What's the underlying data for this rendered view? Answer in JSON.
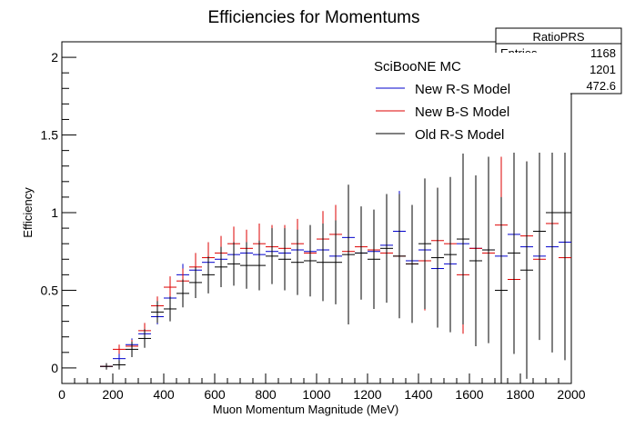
{
  "chart_data": {
    "type": "scatter",
    "title": "Efficiencies for Momentums",
    "xlabel": "Muon Momentum Magnitude (MeV)",
    "ylabel": "Efficiency",
    "xlim": [
      0,
      2000
    ],
    "ylim": [
      -0.1,
      2.1
    ],
    "xticks": [
      0,
      200,
      400,
      600,
      800,
      1000,
      1200,
      1400,
      1600,
      1800,
      2000
    ],
    "yticks": [
      0,
      0.5,
      1,
      1.5,
      2
    ],
    "ytick_labels": [
      "0",
      "0.5",
      "1",
      "1.5",
      "2"
    ],
    "grid": false,
    "bin_width": 50,
    "legend": {
      "placement": "top-right",
      "header": "SciBooNE MC",
      "entries": [
        {
          "label": "New R-S Model",
          "color": "#0000cc"
        },
        {
          "label": "New B-S Model",
          "color": "#dd0000"
        },
        {
          "label": "Old R-S Model",
          "color": "#000000"
        }
      ]
    },
    "stats_box": {
      "title": "RatioPRS",
      "rows": [
        {
          "label": "Entries",
          "value": "1168"
        },
        {
          "label": "",
          "value": "1201"
        },
        {
          "label": "",
          "value": "472.6"
        }
      ]
    },
    "series": [
      {
        "name": "New R-S Model",
        "color": "#0000cc",
        "x": [
          175,
          225,
          275,
          325,
          375,
          425,
          475,
          525,
          575,
          625,
          675,
          725,
          775,
          825,
          875,
          925,
          975,
          1025,
          1075,
          1125,
          1175,
          1225,
          1275,
          1325,
          1375,
          1425,
          1475,
          1525,
          1575,
          1625,
          1675,
          1725,
          1775,
          1825,
          1875,
          1925,
          1975
        ],
        "y": [
          0.01,
          0.06,
          0.15,
          0.22,
          0.33,
          0.45,
          0.6,
          0.63,
          0.68,
          0.7,
          0.73,
          0.74,
          0.73,
          0.75,
          0.74,
          0.76,
          0.75,
          0.76,
          0.72,
          0.84,
          0.74,
          0.75,
          0.79,
          0.88,
          0.69,
          0.76,
          0.64,
          0.67,
          0.8,
          0.77,
          0.76,
          0.72,
          0.86,
          0.78,
          0.72,
          0.78,
          0.81
        ],
        "err": [
          0.02,
          0.03,
          0.04,
          0.04,
          0.05,
          0.06,
          0.07,
          0.08,
          0.08,
          0.09,
          0.1,
          0.1,
          0.11,
          0.12,
          0.13,
          0.14,
          0.15,
          0.16,
          0.17,
          0.19,
          0.2,
          0.22,
          0.24,
          0.26,
          0.28,
          0.3,
          0.32,
          0.34,
          0.36,
          0.38,
          0.4,
          0.42,
          0.44,
          0.46,
          0.48,
          0.5,
          0.52
        ]
      },
      {
        "name": "New B-S Model",
        "color": "#dd0000",
        "x": [
          175,
          225,
          275,
          325,
          375,
          425,
          475,
          525,
          575,
          625,
          675,
          725,
          775,
          825,
          875,
          925,
          975,
          1025,
          1075,
          1125,
          1175,
          1225,
          1275,
          1325,
          1375,
          1425,
          1475,
          1525,
          1575,
          1625,
          1675,
          1725,
          1775,
          1825,
          1875,
          1925,
          1975
        ],
        "y": [
          0.01,
          0.12,
          0.14,
          0.24,
          0.4,
          0.52,
          0.56,
          0.65,
          0.71,
          0.74,
          0.8,
          0.77,
          0.8,
          0.78,
          0.77,
          0.8,
          0.74,
          0.83,
          0.86,
          0.75,
          0.78,
          0.76,
          0.74,
          0.72,
          0.67,
          0.69,
          0.82,
          0.8,
          0.6,
          0.77,
          0.74,
          0.92,
          0.57,
          0.85,
          0.7,
          0.93,
          0.71
        ],
        "err": [
          0.02,
          0.03,
          0.04,
          0.05,
          0.06,
          0.07,
          0.08,
          0.09,
          0.1,
          0.11,
          0.11,
          0.12,
          0.13,
          0.14,
          0.15,
          0.16,
          0.17,
          0.18,
          0.19,
          0.2,
          0.22,
          0.24,
          0.26,
          0.28,
          0.3,
          0.32,
          0.34,
          0.36,
          0.38,
          0.4,
          0.42,
          0.44,
          0.46,
          0.48,
          0.5,
          0.52,
          0.54
        ]
      },
      {
        "name": "Old R-S Model",
        "color": "#000000",
        "x": [
          175,
          225,
          275,
          325,
          375,
          425,
          475,
          525,
          575,
          625,
          675,
          725,
          775,
          825,
          875,
          925,
          975,
          1025,
          1075,
          1125,
          1175,
          1225,
          1275,
          1325,
          1375,
          1425,
          1475,
          1525,
          1575,
          1625,
          1675,
          1725,
          1775,
          1825,
          1875,
          1925,
          1975
        ],
        "y": [
          0.01,
          0.02,
          0.12,
          0.19,
          0.36,
          0.38,
          0.48,
          0.55,
          0.6,
          0.65,
          0.67,
          0.66,
          0.66,
          0.72,
          0.7,
          0.68,
          0.69,
          0.68,
          0.68,
          0.73,
          0.74,
          0.7,
          0.77,
          0.72,
          0.67,
          0.8,
          0.71,
          0.73,
          0.83,
          0.69,
          0.76,
          0.5,
          0.74,
          0.63,
          0.88,
          1.0,
          1.0
        ],
        "err": [
          0.02,
          0.03,
          0.05,
          0.06,
          0.07,
          0.08,
          0.09,
          0.1,
          0.12,
          0.13,
          0.14,
          0.15,
          0.16,
          0.18,
          0.2,
          0.21,
          0.23,
          0.25,
          0.27,
          0.45,
          0.3,
          0.32,
          0.35,
          0.4,
          0.38,
          0.42,
          0.45,
          0.5,
          0.55,
          0.55,
          0.6,
          0.6,
          0.65,
          0.7,
          0.7,
          0.9,
          0.95
        ]
      }
    ]
  }
}
